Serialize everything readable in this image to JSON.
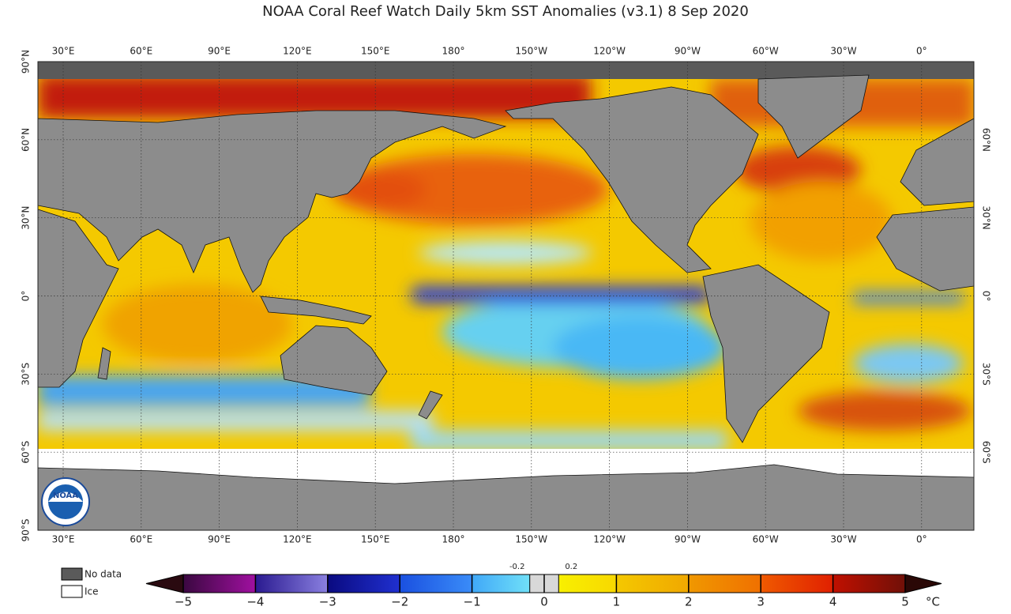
{
  "title": "NOAA Coral Reef Watch Daily 5km SST Anomalies  (v3.1)   8 Sep 2020",
  "map": {
    "lon_labels": [
      "30°E",
      "60°E",
      "90°E",
      "120°E",
      "150°E",
      "180°",
      "150°W",
      "120°W",
      "90°W",
      "60°W",
      "30°W",
      "0°"
    ],
    "lat_labels_left": [
      "90°N",
      "60°N",
      "30°N",
      "0°",
      "30°S",
      "60°S",
      "90°S"
    ],
    "lat_labels_right": [
      "60°N",
      "30°N",
      "0°",
      "30°S",
      "60°S"
    ],
    "logo_text": "NOAA"
  },
  "legend": {
    "no_data": "No data",
    "ice": "Ice"
  },
  "colorbar": {
    "ticks": [
      {
        "value": -5,
        "label": "−5"
      },
      {
        "value": -4,
        "label": "−4"
      },
      {
        "value": -3,
        "label": "−3"
      },
      {
        "value": -2,
        "label": "−2"
      },
      {
        "value": -1,
        "label": "−1"
      },
      0,
      1,
      2,
      3,
      4,
      5
    ],
    "minor_ticks": [
      -0.2,
      0.2
    ],
    "unit": "°C"
  }
}
